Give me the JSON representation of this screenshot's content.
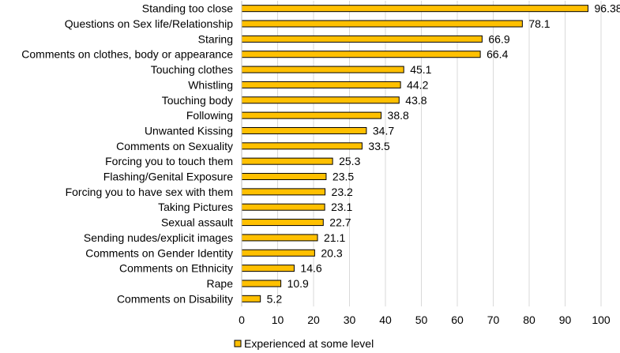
{
  "chart_data": {
    "type": "bar",
    "orientation": "horizontal",
    "categories": [
      "Standing too close",
      "Questions on Sex life/Relationship",
      "Staring",
      "Comments on clothes, body or appearance",
      "Touching clothes",
      "Whistling",
      "Touching body",
      "Following",
      "Unwanted Kissing",
      "Comments on Sexuality",
      "Forcing you to touch them",
      "Flashing/Genital Exposure",
      "Forcing you to have sex with them",
      "Taking Pictures",
      "Sexual assault",
      "Sending nudes/explicit images",
      "Comments on Gender Identity",
      "Comments on Ethnicity",
      "Rape",
      "Comments on Disability"
    ],
    "values": [
      96.38,
      78.1,
      66.9,
      66.4,
      45.1,
      44.2,
      43.8,
      38.8,
      34.7,
      33.5,
      25.3,
      23.5,
      23.2,
      23.1,
      22.7,
      21.1,
      20.3,
      14.6,
      10.9,
      5.2
    ],
    "value_labels": [
      "96.38",
      "78.1",
      "66.9",
      "66.4",
      "45.1",
      "44.2",
      "43.8",
      "38.8",
      "34.7",
      "33.5",
      "25.3",
      "23.5",
      "23.2",
      "23.1",
      "22.7",
      "21.1",
      "20.3",
      "14.6",
      "10.9",
      "5.2"
    ],
    "series": [
      {
        "name": "Experienced at some level"
      }
    ],
    "xlim": [
      0,
      100
    ],
    "xticks": [
      "0",
      "10",
      "20",
      "30",
      "40",
      "50",
      "60",
      "70",
      "80",
      "90",
      "100"
    ],
    "grid": "vertical",
    "legend_position": "bottom",
    "bar_color": "#FFC000",
    "bar_edge_color": "#000000",
    "grid_color": "#D9D9D9",
    "title": "",
    "xlabel": "",
    "ylabel": ""
  }
}
